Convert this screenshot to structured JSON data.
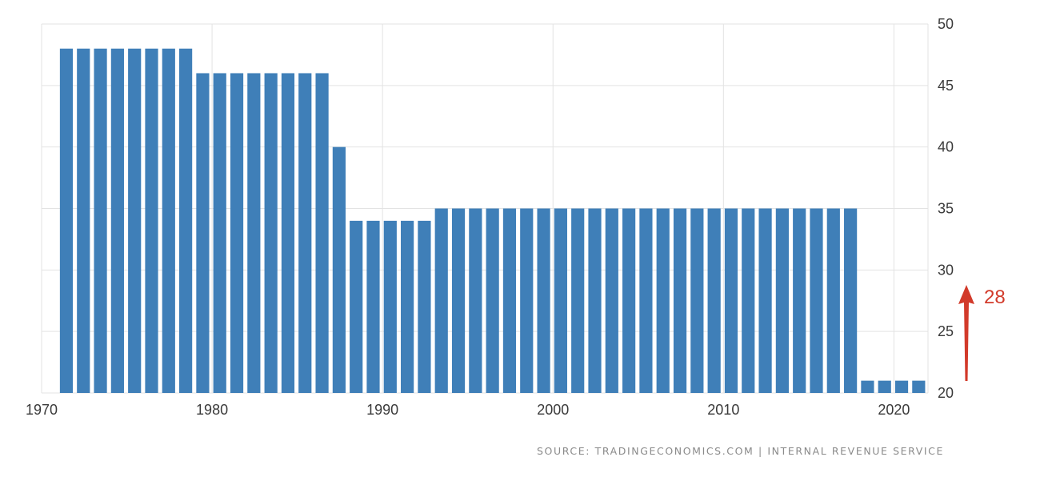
{
  "chart_data": {
    "type": "bar",
    "title": "",
    "xlabel": "",
    "ylabel": "",
    "x": [
      1971,
      1972,
      1973,
      1974,
      1975,
      1976,
      1977,
      1978,
      1979,
      1980,
      1981,
      1982,
      1983,
      1984,
      1985,
      1986,
      1987,
      1988,
      1989,
      1990,
      1991,
      1992,
      1993,
      1994,
      1995,
      1996,
      1997,
      1998,
      1999,
      2000,
      2001,
      2002,
      2003,
      2004,
      2005,
      2006,
      2007,
      2008,
      2009,
      2010,
      2011,
      2012,
      2013,
      2014,
      2015,
      2016,
      2017,
      2018,
      2019,
      2020,
      2021
    ],
    "values": [
      48,
      48,
      48,
      48,
      48,
      48,
      48,
      48,
      46,
      46,
      46,
      46,
      46,
      46,
      46,
      46,
      40,
      34,
      34,
      34,
      34,
      34,
      35,
      35,
      35,
      35,
      35,
      35,
      35,
      35,
      35,
      35,
      35,
      35,
      35,
      35,
      35,
      35,
      35,
      35,
      35,
      35,
      35,
      35,
      35,
      35,
      35,
      21,
      21,
      21,
      21
    ],
    "ylim": [
      20,
      50
    ],
    "xlim": [
      1970,
      2022
    ],
    "y_ticks": [
      20,
      25,
      30,
      35,
      40,
      45,
      50
    ],
    "x_ticks": [
      1970,
      1980,
      1990,
      2000,
      2010,
      2020
    ],
    "y_axis_side": "right",
    "grid": true,
    "bar_color": "#3f7fb8",
    "annotation": {
      "text": "28",
      "color": "#d23a2a",
      "arrow": "up"
    },
    "source": "SOURCE: TRADINGECONOMICS.COM | INTERNAL REVENUE SERVICE"
  }
}
